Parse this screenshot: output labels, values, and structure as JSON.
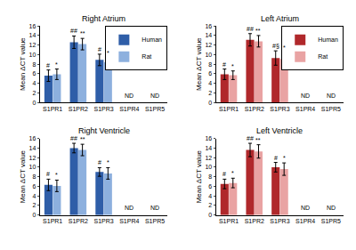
{
  "chart_data": [
    {
      "type": "bar",
      "title": "Right Atrium",
      "y_label": "Mean ΔCT value",
      "categories": [
        "S1PR1",
        "S1PR2",
        "S1PR3",
        "S1PR4",
        "S1PR5"
      ],
      "series": [
        {
          "name": "Human",
          "color": "#2f5ea8",
          "values": [
            5.6,
            12.6,
            8.9,
            null,
            null
          ],
          "error": [
            1.2,
            1.3,
            1.2,
            null,
            null
          ]
        },
        {
          "name": "Rat",
          "color": "#8db0de",
          "values": [
            5.9,
            12.2,
            8.4,
            null,
            null
          ],
          "error": [
            1.1,
            1.2,
            1.0,
            null,
            null
          ]
        }
      ],
      "annotations": [
        {
          "text": "#",
          "category": "S1PR1",
          "series": "Human"
        },
        {
          "text": "*",
          "category": "S1PR1",
          "series": "Rat"
        },
        {
          "text": "##",
          "category": "S1PR2",
          "series": "Human"
        },
        {
          "text": "**",
          "category": "S1PR2",
          "series": "Rat"
        },
        {
          "text": "#",
          "category": "S1PR3",
          "series": "Human"
        },
        {
          "text": "*",
          "category": "S1PR3",
          "series": "Rat"
        },
        {
          "text": "ND",
          "category": "S1PR4"
        },
        {
          "text": "ND",
          "category": "S1PR5"
        }
      ],
      "ylim": [
        0,
        16
      ],
      "yticks": [
        0,
        2,
        4,
        6,
        8,
        10,
        12,
        14,
        16
      ],
      "grid": false,
      "legend": "upper right"
    },
    {
      "type": "bar",
      "title": "Left Atrium",
      "y_label": "Mean ΔCT value",
      "categories": [
        "S1PR1",
        "S1PR2",
        "S1PR3",
        "S1PR4",
        "S1PR5"
      ],
      "series": [
        {
          "name": "Human",
          "color": "#b0282b",
          "values": [
            5.9,
            13.1,
            9.3,
            null,
            null
          ],
          "error": [
            1.1,
            1.3,
            1.5,
            null,
            null
          ]
        },
        {
          "name": "Rat",
          "color": "#e9a3a3",
          "values": [
            5.7,
            12.8,
            9.1,
            null,
            null
          ],
          "error": [
            0.9,
            1.2,
            1.3,
            null,
            null
          ]
        }
      ],
      "annotations": [
        {
          "text": "#",
          "category": "S1PR1",
          "series": "Human"
        },
        {
          "text": "*",
          "category": "S1PR1",
          "series": "Rat"
        },
        {
          "text": "##",
          "category": "S1PR2",
          "series": "Human"
        },
        {
          "text": "**",
          "category": "S1PR2",
          "series": "Rat"
        },
        {
          "text": "#§",
          "category": "S1PR3",
          "series": "Human"
        },
        {
          "text": "*",
          "category": "S1PR3",
          "series": "Rat"
        },
        {
          "text": "ND",
          "category": "S1PR4"
        },
        {
          "text": "ND",
          "category": "S1PR5"
        }
      ],
      "ylim": [
        0,
        16
      ],
      "yticks": [
        0,
        2,
        4,
        6,
        8,
        10,
        12,
        14,
        16
      ],
      "grid": false,
      "legend": "upper right"
    },
    {
      "type": "bar",
      "title": "Right Ventricle",
      "y_label": "Mean ΔCT value",
      "categories": [
        "S1PR1",
        "S1PR2",
        "S1PR3",
        "S1PR4",
        "S1PR5"
      ],
      "series": [
        {
          "name": "Human",
          "color": "#2f5ea8",
          "values": [
            6.3,
            14.0,
            9.0,
            null,
            null
          ],
          "error": [
            1.2,
            1.0,
            0.9,
            null,
            null
          ]
        },
        {
          "name": "Rat",
          "color": "#8db0de",
          "values": [
            6.1,
            13.6,
            8.7,
            null,
            null
          ],
          "error": [
            1.2,
            1.2,
            1.2,
            null,
            null
          ]
        }
      ],
      "annotations": [
        {
          "text": "#",
          "category": "S1PR1",
          "series": "Human"
        },
        {
          "text": "*",
          "category": "S1PR1",
          "series": "Rat"
        },
        {
          "text": "##",
          "category": "S1PR2",
          "series": "Human"
        },
        {
          "text": "**",
          "category": "S1PR2",
          "series": "Rat"
        },
        {
          "text": "#",
          "category": "S1PR3",
          "series": "Human"
        },
        {
          "text": "*",
          "category": "S1PR3",
          "series": "Rat"
        },
        {
          "text": "ND",
          "category": "S1PR4"
        },
        {
          "text": "ND",
          "category": "S1PR5"
        }
      ],
      "ylim": [
        0,
        16
      ],
      "yticks": [
        0,
        2,
        4,
        6,
        8,
        10,
        12,
        14,
        16
      ],
      "grid": false
    },
    {
      "type": "bar",
      "title": "Left Ventricle",
      "y_label": "Mean ΔCT value",
      "categories": [
        "S1PR1",
        "S1PR2",
        "S1PR3",
        "S1PR4",
        "S1PR5"
      ],
      "series": [
        {
          "name": "Human",
          "color": "#b0282b",
          "values": [
            6.5,
            13.6,
            10.0,
            null,
            null
          ],
          "error": [
            1.0,
            1.4,
            1.0,
            null,
            null
          ]
        },
        {
          "name": "Rat",
          "color": "#e9a3a3",
          "values": [
            6.7,
            13.3,
            9.6,
            null,
            null
          ],
          "error": [
            1.0,
            1.4,
            1.3,
            null,
            null
          ]
        }
      ],
      "annotations": [
        {
          "text": "#",
          "category": "S1PR1",
          "series": "Human"
        },
        {
          "text": "*",
          "category": "S1PR1",
          "series": "Rat"
        },
        {
          "text": "##",
          "category": "S1PR2",
          "series": "Human"
        },
        {
          "text": "**",
          "category": "S1PR2",
          "series": "Rat"
        },
        {
          "text": "#",
          "category": "S1PR3",
          "series": "Human"
        },
        {
          "text": "*",
          "category": "S1PR3",
          "series": "Rat"
        },
        {
          "text": "ND",
          "category": "S1PR4"
        },
        {
          "text": "ND",
          "category": "S1PR5"
        }
      ],
      "ylim": [
        0,
        16
      ],
      "yticks": [
        0,
        2,
        4,
        6,
        8,
        10,
        12,
        14,
        16
      ],
      "grid": false
    }
  ]
}
